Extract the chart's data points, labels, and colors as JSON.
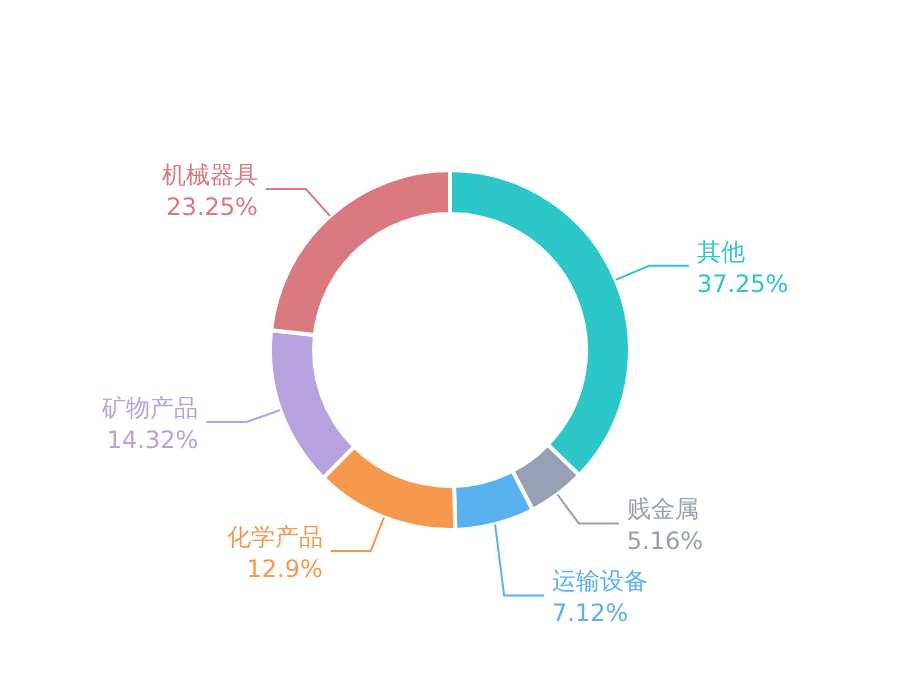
{
  "chart_data": {
    "type": "donut",
    "categories": [
      "其他",
      "贱金属",
      "运输设备",
      "化学产品",
      "矿物产品",
      "机械器具"
    ],
    "values": [
      37.25,
      5.16,
      7.12,
      12.9,
      14.32,
      23.25
    ],
    "colors": [
      "#2ec7c9",
      "#97a0b3",
      "#5ab1ef",
      "#f5994e",
      "#b6a2de",
      "#d87a80"
    ],
    "value_labels": [
      "37.25%",
      "5.16%",
      "7.12%",
      "12.9%",
      "14.32%",
      "23.25%"
    ],
    "legend": false
  }
}
